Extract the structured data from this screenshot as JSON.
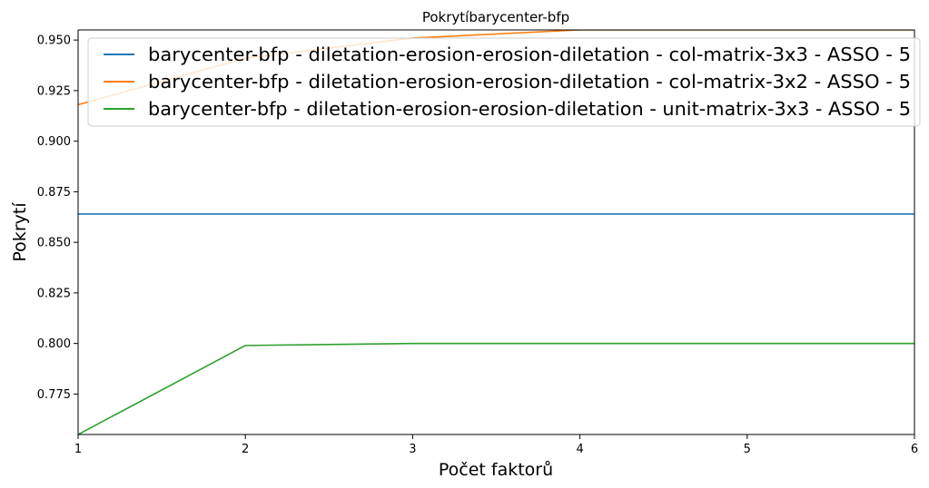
{
  "chart_data": {
    "type": "line",
    "title": "Pokrytíbarycenter-bfp",
    "xlabel": "Počet faktorů",
    "ylabel": "Pokrytí",
    "xlim": [
      1,
      6
    ],
    "ylim": [
      0.755,
      0.955
    ],
    "xticks": [
      1,
      2,
      3,
      4,
      5,
      6
    ],
    "yticks": [
      0.775,
      0.8,
      0.825,
      0.85,
      0.875,
      0.9,
      0.925,
      0.95
    ],
    "ytick_labels": [
      "0.775",
      "0.800",
      "0.825",
      "0.850",
      "0.875",
      "0.900",
      "0.925",
      "0.950"
    ],
    "grid": false,
    "legend_position": "top",
    "x": [
      1,
      2,
      3,
      4,
      5,
      6
    ],
    "series": [
      {
        "name": "barycenter-bfp - diletation-erosion-erosion-diletation - col-matrix-3x3 - ASSO - 5",
        "color": "#1f77b4",
        "values": [
          0.864,
          0.864,
          0.864,
          0.864,
          0.864,
          0.864
        ]
      },
      {
        "name": "barycenter-bfp - diletation-erosion-erosion-diletation - col-matrix-3x2 - ASSO - 5",
        "color": "#ff7f0e",
        "values": [
          0.918,
          0.941,
          0.951,
          0.955,
          0.955,
          0.955
        ]
      },
      {
        "name": "barycenter-bfp - diletation-erosion-erosion-diletation - unit-matrix-3x3 - ASSO - 5",
        "color": "#2ca02c",
        "values": [
          0.755,
          0.799,
          0.8,
          0.8,
          0.8,
          0.8
        ]
      }
    ]
  }
}
